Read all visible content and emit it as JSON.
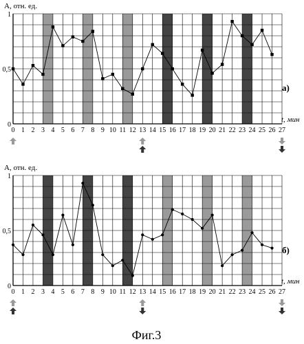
{
  "figure_caption": "Фиг.3",
  "colors": {
    "grid": "#000000",
    "light_band": "#9a9a9a",
    "dark_band": "#444444",
    "light_arrow": "#9a9a9a",
    "dark_arrow": "#333333",
    "series": "#000000"
  },
  "chart_data": [
    {
      "type": "line",
      "panel_label": "а)",
      "ylabel": "А, отн. ед.",
      "xlabel": "t, мин",
      "ylim": [
        0,
        1
      ],
      "xlim": [
        0,
        27
      ],
      "y_ticks": [
        "0",
        "0,5",
        "1"
      ],
      "x_ticks": [
        "0",
        "1",
        "2",
        "3",
        "4",
        "5",
        "6",
        "7",
        "8",
        "9",
        "10",
        "11",
        "12",
        "13",
        "14",
        "15",
        "16",
        "17",
        "18",
        "19",
        "20",
        "21",
        "22",
        "23",
        "24",
        "25",
        "26",
        "27"
      ],
      "grid": true,
      "marker": "square",
      "x": [
        0,
        1,
        2,
        3,
        4,
        5,
        6,
        7,
        8,
        9,
        10,
        11,
        12,
        13,
        14,
        15,
        16,
        17,
        18,
        19,
        20,
        21,
        22,
        23,
        24,
        25,
        26
      ],
      "values": [
        0.5,
        0.36,
        0.53,
        0.45,
        0.88,
        0.71,
        0.79,
        0.75,
        0.84,
        0.41,
        0.45,
        0.32,
        0.27,
        0.5,
        0.72,
        0.64,
        0.5,
        0.36,
        0.26,
        0.67,
        0.46,
        0.54,
        0.93,
        0.8,
        0.72,
        0.85,
        0.63
      ],
      "bands": [
        {
          "x": 3,
          "tone": "light"
        },
        {
          "x": 7,
          "tone": "light"
        },
        {
          "x": 11,
          "tone": "light"
        },
        {
          "x": 15,
          "tone": "dark"
        },
        {
          "x": 19,
          "tone": "dark"
        },
        {
          "x": 23,
          "tone": "dark"
        }
      ],
      "markers_below": [
        {
          "x": 0,
          "arrows": [
            {
              "dir": "up",
              "tone": "light"
            }
          ]
        },
        {
          "x": 13,
          "arrows": [
            {
              "dir": "up",
              "tone": "light"
            },
            {
              "dir": "up",
              "tone": "dark"
            }
          ]
        },
        {
          "x": 27,
          "arrows": [
            {
              "dir": "down",
              "tone": "light"
            },
            {
              "dir": "down",
              "tone": "dark"
            }
          ]
        }
      ]
    },
    {
      "type": "line",
      "panel_label": "б)",
      "ylabel": "А, отн. ед.",
      "xlabel": "t, мин",
      "ylim": [
        0,
        1
      ],
      "xlim": [
        0,
        27
      ],
      "y_ticks": [
        "0",
        "0,5",
        "1"
      ],
      "x_ticks": [
        "0",
        "1",
        "2",
        "3",
        "4",
        "5",
        "6",
        "7",
        "8",
        "9",
        "10",
        "11",
        "12",
        "13",
        "14",
        "15",
        "16",
        "17",
        "18",
        "19",
        "20",
        "21",
        "22",
        "23",
        "24",
        "25",
        "26",
        "27"
      ],
      "grid": true,
      "marker": "circle",
      "x": [
        0,
        1,
        2,
        3,
        4,
        5,
        6,
        7,
        8,
        9,
        10,
        11,
        12,
        13,
        14,
        15,
        16,
        17,
        18,
        19,
        20,
        21,
        22,
        23,
        24,
        25,
        26
      ],
      "values": [
        0.37,
        0.28,
        0.55,
        0.46,
        0.28,
        0.64,
        0.37,
        0.93,
        0.73,
        0.28,
        0.18,
        0.23,
        0.09,
        0.46,
        0.42,
        0.46,
        0.69,
        0.65,
        0.6,
        0.52,
        0.64,
        0.18,
        0.28,
        0.32,
        0.48,
        0.37,
        0.34
      ],
      "bands": [
        {
          "x": 3,
          "tone": "dark"
        },
        {
          "x": 7,
          "tone": "dark"
        },
        {
          "x": 11,
          "tone": "dark"
        },
        {
          "x": 15,
          "tone": "light"
        },
        {
          "x": 19,
          "tone": "light"
        },
        {
          "x": 23,
          "tone": "light"
        }
      ],
      "markers_below": [
        {
          "x": 0,
          "arrows": [
            {
              "dir": "up",
              "tone": "light"
            },
            {
              "dir": "up",
              "tone": "dark"
            }
          ]
        },
        {
          "x": 13,
          "arrows": [
            {
              "dir": "up",
              "tone": "light"
            },
            {
              "dir": "down",
              "tone": "dark"
            }
          ]
        },
        {
          "x": 27,
          "arrows": [
            {
              "dir": "down",
              "tone": "light"
            },
            {
              "dir": "down",
              "tone": "dark"
            }
          ]
        }
      ]
    }
  ]
}
